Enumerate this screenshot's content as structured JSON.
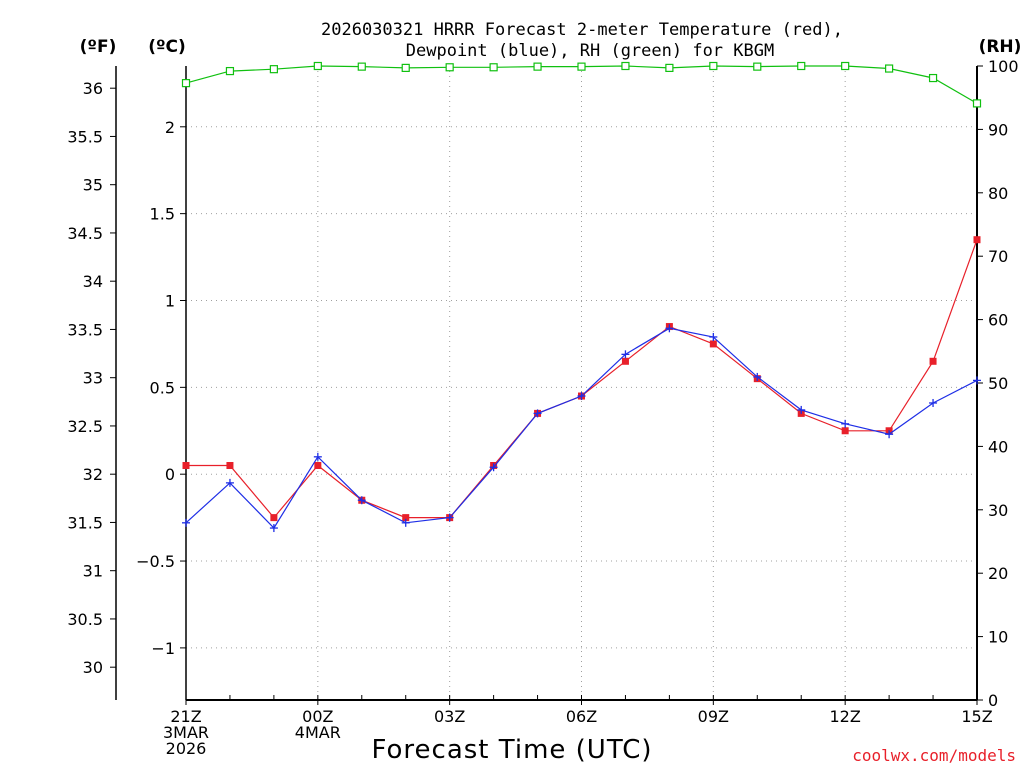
{
  "chart_data": {
    "type": "line",
    "title_line1": "2026030321 HRRR Forecast 2-meter Temperature (red),",
    "title_line2": "Dewpoint (blue), RH (green) for KBGM",
    "xlabel": "Forecast Time (UTC)",
    "credit": "coolwx.com/models",
    "units": {
      "f": "(ºF)",
      "c": "(ºC)",
      "rh": "(RH)"
    },
    "x_ticks": [
      {
        "idx": 0,
        "lines": [
          "21Z",
          "3MAR",
          "2026"
        ]
      },
      {
        "idx": 3,
        "lines": [
          "00Z",
          "4MAR"
        ]
      },
      {
        "idx": 6,
        "lines": [
          "03Z"
        ]
      },
      {
        "idx": 9,
        "lines": [
          "06Z"
        ]
      },
      {
        "idx": 12,
        "lines": [
          "09Z"
        ]
      },
      {
        "idx": 15,
        "lines": [
          "12Z"
        ]
      },
      {
        "idx": 18,
        "lines": [
          "15Z"
        ]
      }
    ],
    "x_count": 19,
    "y_celsius": {
      "range": [
        -1.3,
        2.35
      ],
      "ticks": [
        "-1",
        "-0.5",
        "0",
        "0.5",
        "1",
        "1.5",
        "2"
      ]
    },
    "y_fahrenheit": {
      "ticks": [
        "30",
        "30.5",
        "31",
        "31.5",
        "32",
        "32.5",
        "33",
        "33.5",
        "34",
        "34.5",
        "35",
        "35.5",
        "36"
      ]
    },
    "y_rh": {
      "range": [
        0,
        100
      ],
      "ticks": [
        "0",
        "10",
        "20",
        "30",
        "40",
        "50",
        "60",
        "70",
        "80",
        "90",
        "100"
      ]
    },
    "series": [
      {
        "name": "Temperature",
        "axis": "celsius",
        "color": "#e8202a",
        "marker": "square",
        "values": [
          0.05,
          0.05,
          -0.25,
          0.05,
          -0.15,
          -0.25,
          -0.25,
          0.05,
          0.35,
          0.45,
          0.65,
          0.85,
          0.75,
          0.55,
          0.35,
          0.25,
          0.25,
          0.65,
          1.35
        ]
      },
      {
        "name": "Dewpoint",
        "axis": "celsius",
        "color": "#1e2ee6",
        "marker": "plus",
        "values": [
          -0.28,
          -0.05,
          -0.31,
          0.1,
          -0.15,
          -0.28,
          -0.25,
          0.04,
          0.35,
          0.45,
          0.69,
          0.84,
          0.79,
          0.56,
          0.37,
          0.29,
          0.23,
          0.41,
          0.54
        ]
      },
      {
        "name": "RH",
        "axis": "rh",
        "color": "#10c010",
        "marker": "open-square",
        "values": [
          97.3,
          99.2,
          99.5,
          100,
          99.9,
          99.7,
          99.8,
          99.8,
          99.9,
          99.9,
          100,
          99.7,
          100,
          99.9,
          100,
          100,
          99.6,
          98.1,
          94.1
        ]
      }
    ],
    "grid": true
  }
}
